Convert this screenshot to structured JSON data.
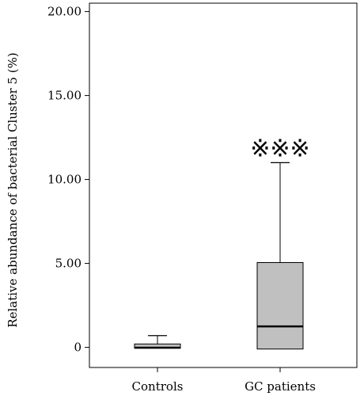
{
  "chart_data": {
    "type": "box",
    "title": "",
    "xlabel": "",
    "ylabel": "Relative abundance of bacterial Cluster 5 (%)",
    "ylim": [
      -1.2,
      20.5
    ],
    "yticks": [
      0,
      5,
      10,
      15,
      20
    ],
    "ytick_labels": [
      "0",
      "5.00",
      "10.00",
      "15.00",
      "20.00"
    ],
    "categories": [
      "Controls",
      "GC patients"
    ],
    "boxes": [
      {
        "category": "Controls",
        "whisker_low": -0.05,
        "q1": -0.05,
        "median": -0.02,
        "q3": 0.2,
        "whisker_high": 0.7
      },
      {
        "category": "GC patients",
        "whisker_low": -0.1,
        "q1": -0.1,
        "median": 1.25,
        "q3": 5.05,
        "whisker_high": 11.0
      }
    ],
    "annotations": [
      {
        "category": "GC patients",
        "text": "※※※",
        "y": 11.9
      }
    ],
    "grid": false,
    "box_fill": "#c0c0c0",
    "line_color": "#000000"
  }
}
